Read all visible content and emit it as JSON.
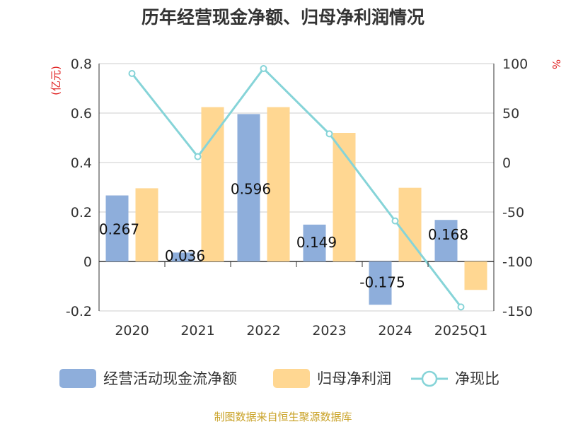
{
  "chart_data": {
    "type": "bar+line",
    "title": "历年经营现金净额、归母净利润情况",
    "categories": [
      "2020",
      "2021",
      "2022",
      "2023",
      "2024",
      "2025Q1"
    ],
    "left_axis": {
      "unit": "(亿元)",
      "min": -0.2,
      "max": 0.8,
      "ticks": [
        -0.2,
        0,
        0.2,
        0.4,
        0.6,
        0.8
      ]
    },
    "right_axis": {
      "unit": "%",
      "min": -150,
      "max": 100,
      "ticks": [
        -150,
        -100,
        -50,
        0,
        50,
        100
      ]
    },
    "series": [
      {
        "name": "经营活动现金流净额",
        "type": "bar",
        "axis": "left",
        "color": "#8eaedb",
        "values": [
          0.267,
          0.036,
          0.596,
          0.149,
          -0.175,
          0.168
        ],
        "labels": [
          "0.267",
          "0.036",
          "0.596",
          "0.149",
          "-0.175",
          "0.168"
        ]
      },
      {
        "name": "归母净利润",
        "type": "bar",
        "axis": "left",
        "color": "#ffd792",
        "values": [
          0.296,
          0.624,
          0.624,
          0.52,
          0.298,
          -0.115
        ]
      },
      {
        "name": "净现比",
        "type": "line",
        "axis": "right",
        "color": "#86d4d8",
        "values": [
          90,
          6,
          95,
          29,
          -59,
          -146
        ]
      }
    ],
    "grid": true,
    "legend_position": "bottom"
  },
  "footer": {
    "source": "制图数据来自恒生聚源数据库"
  }
}
